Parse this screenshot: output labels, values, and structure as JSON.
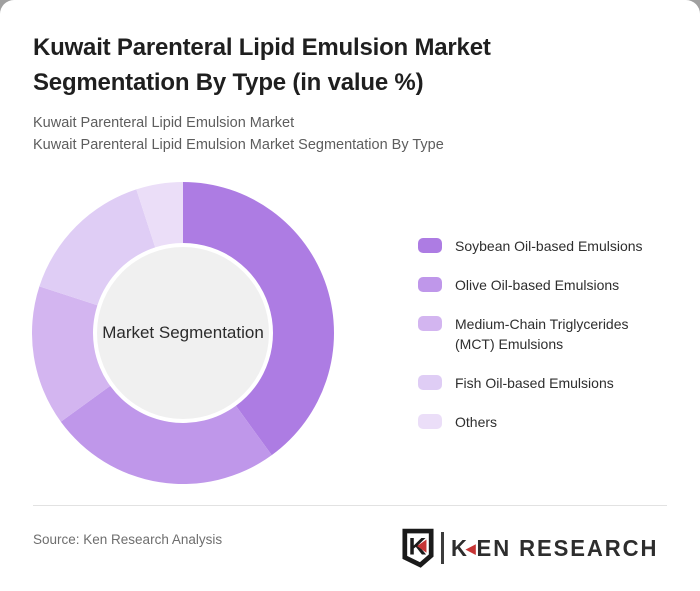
{
  "page": {
    "background_color": "#a0a0a0",
    "card_background": "#ffffff"
  },
  "header": {
    "title": "Kuwait Parenteral Lipid Emulsion Market Segmentation By Type (in value %)",
    "subtitle_line1": "Kuwait Parenteral Lipid Emulsion Market",
    "subtitle_line2": "Kuwait Parenteral Lipid Emulsion Market Segmentation By Type"
  },
  "chart_data": {
    "type": "pie",
    "donut": true,
    "title": "Kuwait Parenteral Lipid Emulsion Market Segmentation By Type (in value %)",
    "center_label": "Market Segmentation",
    "unit": "value %",
    "categories": [
      "Soybean Oil-based Emulsions",
      "Olive Oil-based Emulsions",
      "Medium-Chain Triglycerides (MCT) Emulsions",
      "Fish Oil-based Emulsions",
      "Others"
    ],
    "values": [
      40,
      25,
      15,
      15,
      5
    ],
    "colors": [
      "#ad7ce3",
      "#bf97ea",
      "#d3b5f0",
      "#dfcdf5",
      "#ebdef8"
    ],
    "inner_circle_color": "#f0f0f0",
    "start_angle_deg": 0,
    "clockwise": true,
    "legend_position": "right",
    "grid": false
  },
  "footer": {
    "source": "Source: Ken Research Analysis",
    "logo": {
      "badge_letter": "K",
      "arrow_glyph": "◀",
      "wordmark_k": "K",
      "wordmark_rest": "EN RESEARCH",
      "accent_color": "#c63434",
      "text_color": "#2d2d2d"
    }
  }
}
